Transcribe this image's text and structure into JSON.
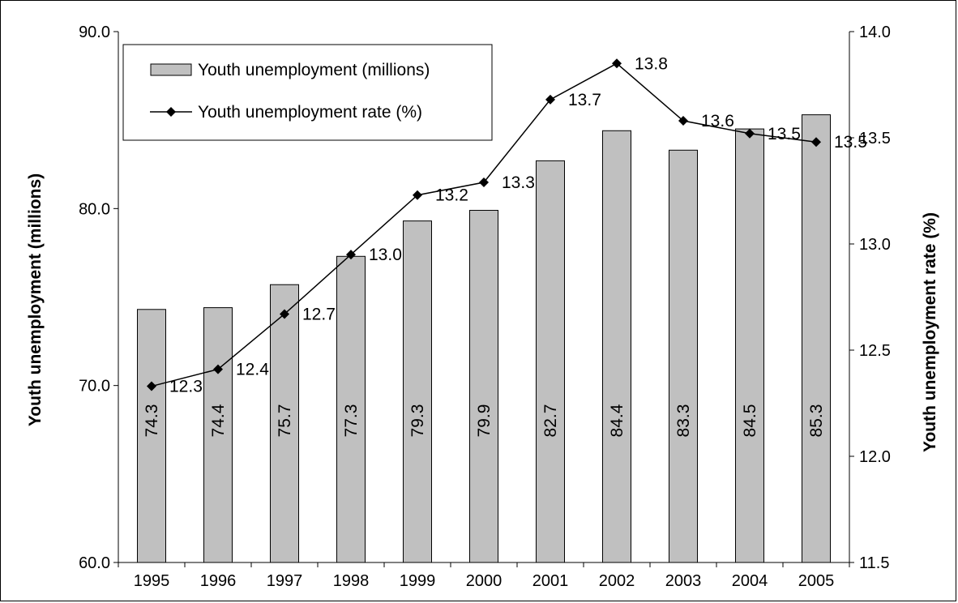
{
  "chart_data": {
    "type": "bar",
    "categories": [
      "1995",
      "1996",
      "1997",
      "1998",
      "1999",
      "2000",
      "2001",
      "2002",
      "2003",
      "2004",
      "2005"
    ],
    "series": [
      {
        "name": "Youth unemployment (millions)",
        "type": "bar",
        "axis": "left",
        "values": [
          74.3,
          74.4,
          75.7,
          77.3,
          79.3,
          79.9,
          82.7,
          84.4,
          83.3,
          84.5,
          85.3
        ],
        "labels": [
          "74.3",
          "74.4",
          "75.7",
          "77.3",
          "79.3",
          "79.9",
          "82.7",
          "84.4",
          "83.3",
          "84.5",
          "85.3"
        ]
      },
      {
        "name": "Youth unemployment rate (%)",
        "type": "line",
        "axis": "right",
        "values": [
          12.33,
          12.41,
          12.67,
          12.95,
          13.23,
          13.29,
          13.68,
          13.85,
          13.58,
          13.52,
          13.48
        ],
        "labels": [
          "12.3",
          "12.4",
          "12.7",
          "13.0",
          "13.2",
          "13.3",
          "13.7",
          "13.8",
          "13.6",
          "13.5",
          "13.5"
        ]
      }
    ],
    "ylabel": "Youth unemployment (millions)",
    "y2label": "Youth unemployment rate (%)",
    "ylim": [
      60,
      90
    ],
    "y2lim": [
      11.5,
      14.0
    ],
    "yticks": [
      "60.0",
      "70.0",
      "80.0",
      "90.0"
    ],
    "y2ticks": [
      "11.5",
      "12.0",
      "12.5",
      "13.0",
      "13.5",
      "14.0"
    ],
    "legend_position": "top-left",
    "grid": false,
    "colors": {
      "bar_fill": "#c0c0c0",
      "bar_stroke": "#000000",
      "line": "#000000"
    }
  }
}
